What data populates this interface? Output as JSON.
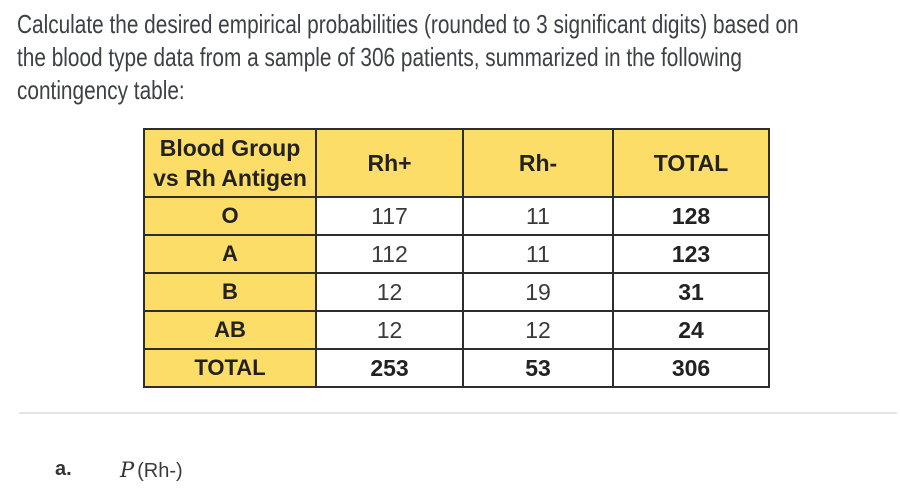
{
  "problem": {
    "lines": [
      "Calculate the desired empirical probabilities (rounded to 3 significant digits) based on",
      "the blood type data from a sample of 306 patients, summarized in the following",
      "contingency table:"
    ]
  },
  "table": {
    "corner_header": {
      "line1": "Blood Group",
      "line2": "vs Rh Antigen"
    },
    "column_headers": [
      "Rh+",
      "Rh-",
      "TOTAL"
    ],
    "rows": [
      {
        "group": "O",
        "values": [
          "117",
          "11",
          "128"
        ]
      },
      {
        "group": "A",
        "values": [
          "112",
          "11",
          "123"
        ]
      },
      {
        "group": "B",
        "values": [
          "12",
          "19",
          "31"
        ]
      },
      {
        "group": "AB",
        "values": [
          "12",
          "12",
          "24"
        ]
      },
      {
        "group": "TOTAL",
        "values": [
          "253",
          "53",
          "306"
        ]
      }
    ]
  },
  "question": {
    "item_label": "a.",
    "probability_symbol": "P",
    "probability_argument": "(Rh-)"
  },
  "colors": {
    "header_fill": "#FCDD67",
    "table_border": "#2d2d2d",
    "body_text": "#3d4045",
    "divider": "#e6e6e6"
  }
}
